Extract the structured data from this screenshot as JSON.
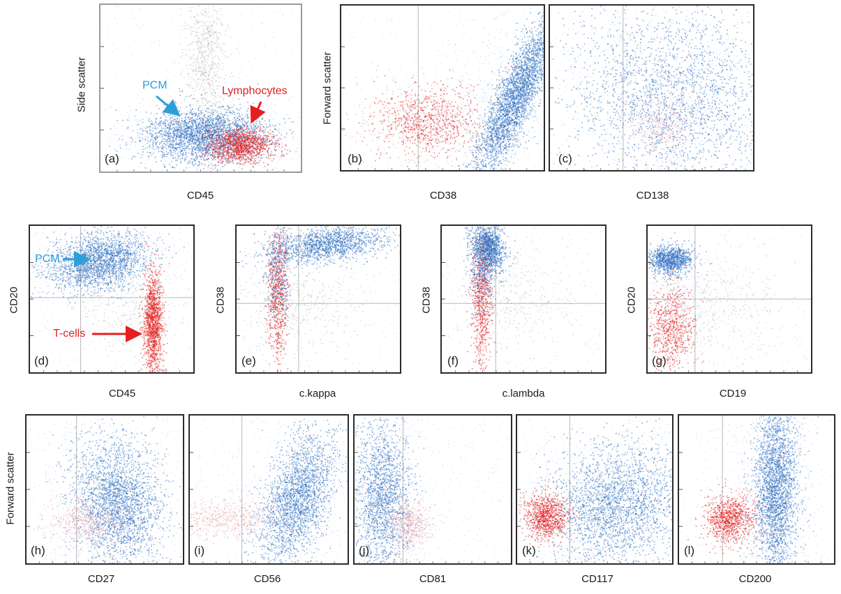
{
  "colors": {
    "pcm": "#2f6fc1",
    "lymph": "#e41f1f",
    "pcm_label": "#2d9fd8",
    "background_events": "#9c9c9c"
  },
  "annotations": {
    "a_pcm": "PCM",
    "a_lymph": "Lymphocytes",
    "d_pcm": "PCM",
    "d_tcells": "T-cells"
  },
  "chart_data": [
    {
      "type": "scatter",
      "panel_label": "(a)",
      "xlabel": "CD45",
      "ylabel": "Side scatter",
      "gates": {
        "v": null,
        "h": null
      },
      "series": [
        {
          "name": "PCM",
          "x": [
            0.48,
            0.52,
            0.44,
            0.56
          ],
          "y": [
            0.22,
            0.24,
            0.2,
            0.26
          ]
        },
        {
          "name": "Lymphocytes",
          "x": [
            0.85,
            0.88
          ],
          "y": [
            0.14,
            0.16
          ]
        }
      ]
    },
    {
      "type": "scatter",
      "panel_label": "(b)",
      "xlabel": "CD38",
      "ylabel": "Forward scatter",
      "gates": {
        "v": 0.38,
        "h": null
      }
    },
    {
      "type": "scatter",
      "panel_label": "(c)",
      "xlabel": "CD138",
      "ylabel": "",
      "gates": {
        "v": 0.36,
        "h": null
      }
    },
    {
      "type": "scatter",
      "panel_label": "(d)",
      "xlabel": "CD45",
      "ylabel": "CD20",
      "gates": {
        "v": 0.31,
        "h": 0.49
      }
    },
    {
      "type": "scatter",
      "panel_label": "(e)",
      "xlabel": "c.kappa",
      "ylabel": "CD38",
      "gates": {
        "v": 0.38,
        "h": 0.53
      }
    },
    {
      "type": "scatter",
      "panel_label": "(f)",
      "xlabel": "c.lambda",
      "ylabel": "CD38",
      "gates": {
        "v": 0.33,
        "h": 0.53
      }
    },
    {
      "type": "scatter",
      "panel_label": "(g)",
      "xlabel": "CD19",
      "ylabel": "CD20",
      "gates": {
        "v": 0.29,
        "h": 0.5
      }
    },
    {
      "type": "scatter",
      "panel_label": "(h)",
      "xlabel": "CD27",
      "ylabel": "Forward scatter",
      "gates": {
        "v": 0.32,
        "h": null
      }
    },
    {
      "type": "scatter",
      "panel_label": "(i)",
      "xlabel": "CD56",
      "ylabel": "",
      "gates": {
        "v": 0.33,
        "h": null
      }
    },
    {
      "type": "scatter",
      "panel_label": "(j)",
      "xlabel": "CD81",
      "ylabel": "",
      "gates": {
        "v": 0.31,
        "h": null
      }
    },
    {
      "type": "scatter",
      "panel_label": "(k)",
      "xlabel": "CD117",
      "ylabel": "",
      "gates": {
        "v": 0.34,
        "h": null
      }
    },
    {
      "type": "scatter",
      "panel_label": "(l)",
      "xlabel": "CD200",
      "ylabel": "",
      "gates": {
        "v": 0.28,
        "h": null
      }
    }
  ]
}
